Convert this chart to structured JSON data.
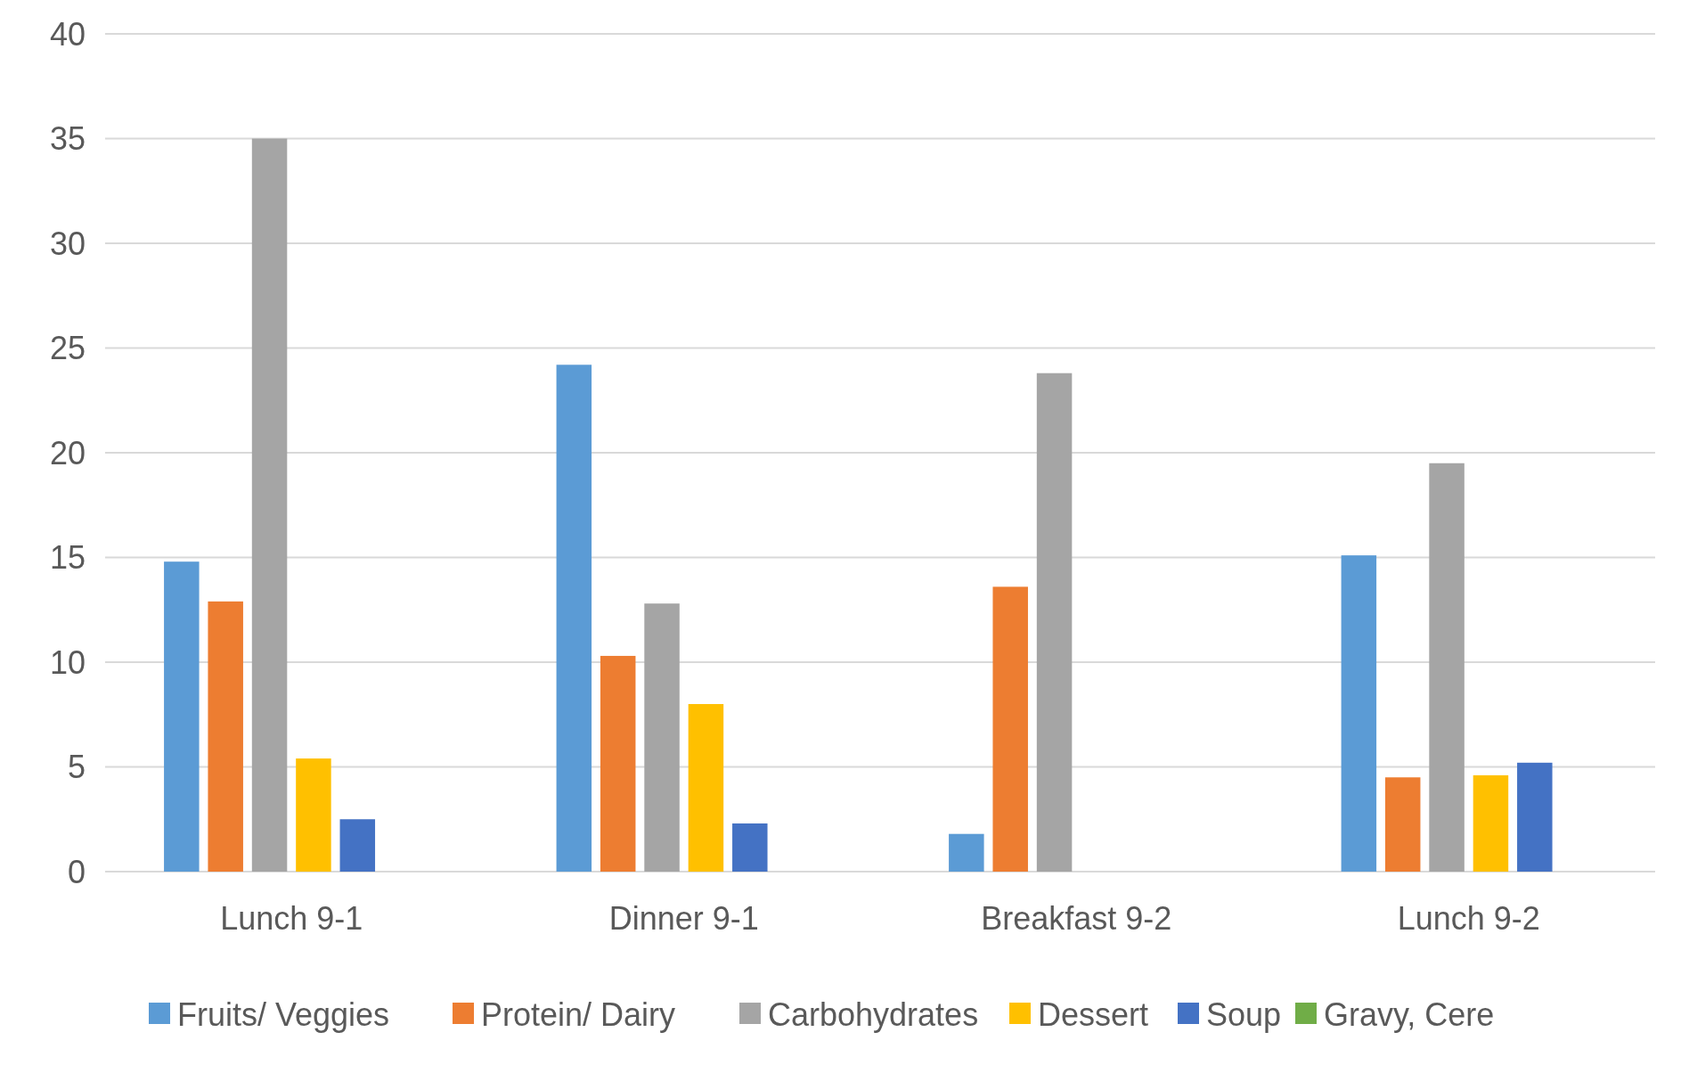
{
  "chart_data": {
    "type": "bar",
    "categories": [
      "Lunch 9-1",
      "Dinner 9-1",
      "Breakfast 9-2",
      "Lunch 9-2"
    ],
    "series": [
      {
        "name": "Fruits/ Veggies",
        "color": "#5b9bd5",
        "values": [
          14.8,
          24.2,
          1.8,
          15.1
        ]
      },
      {
        "name": "Protein/ Dairy",
        "color": "#ed7d31",
        "values": [
          12.9,
          10.3,
          13.6,
          4.5
        ]
      },
      {
        "name": "Carbohydrates",
        "color": "#a5a5a5",
        "values": [
          35,
          12.8,
          23.8,
          19.5
        ]
      },
      {
        "name": "Dessert",
        "color": "#ffc000",
        "values": [
          5.4,
          8.0,
          null,
          4.6
        ]
      },
      {
        "name": "Soup",
        "color": "#4472c4",
        "values": [
          2.5,
          2.3,
          null,
          5.2
        ]
      },
      {
        "name": "Gravy, Cere",
        "color": "#70ad47",
        "values": [
          null,
          null,
          null,
          null
        ]
      }
    ],
    "ylim": [
      0,
      40
    ],
    "yticks": [
      0,
      5,
      10,
      15,
      20,
      25,
      30,
      35,
      40
    ],
    "grid": "y",
    "legend": "bottom"
  }
}
